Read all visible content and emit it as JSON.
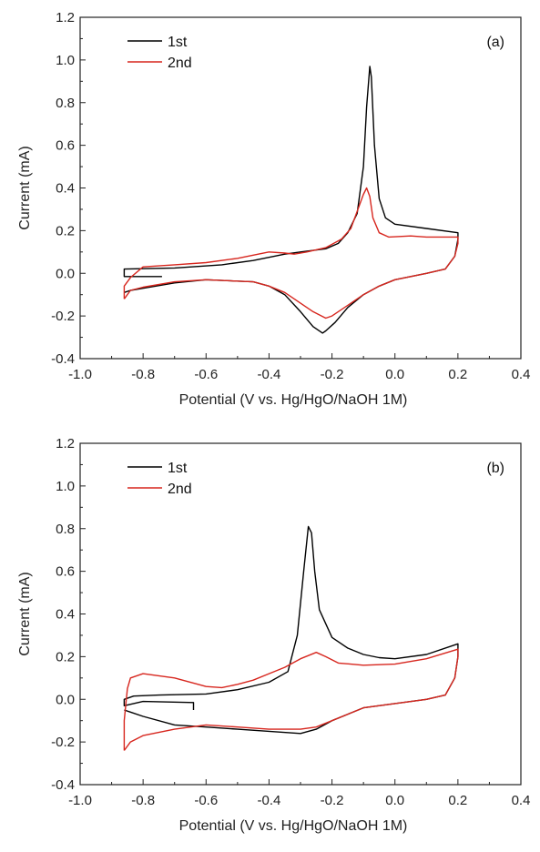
{
  "chart_data": [
    {
      "type": "line",
      "panel_label": "(a)",
      "xlabel": "Potential (V vs. Hg/HgO/NaOH 1M)",
      "ylabel": "Current (mA)",
      "xlim": [
        -1.0,
        0.4
      ],
      "ylim": [
        -0.4,
        1.2
      ],
      "xticks": [
        "-1.0",
        "-0.8",
        "-0.6",
        "-0.4",
        "-0.2",
        "0.0",
        "0.2",
        "0.4"
      ],
      "yticks": [
        "-0.4",
        "-0.2",
        "0.0",
        "0.2",
        "0.4",
        "0.6",
        "0.8",
        "1.0",
        "1.2"
      ],
      "legend_position": "top-left",
      "series": [
        {
          "name": "1st",
          "color": "#000000",
          "points": [
            [
              -0.74,
              -0.015
            ],
            [
              -0.86,
              -0.015
            ],
            [
              -0.86,
              0.02
            ],
            [
              -0.7,
              0.025
            ],
            [
              -0.55,
              0.04
            ],
            [
              -0.45,
              0.06
            ],
            [
              -0.35,
              0.09
            ],
            [
              -0.3,
              0.1
            ],
            [
              -0.22,
              0.115
            ],
            [
              -0.18,
              0.14
            ],
            [
              -0.15,
              0.19
            ],
            [
              -0.12,
              0.28
            ],
            [
              -0.1,
              0.5
            ],
            [
              -0.09,
              0.78
            ],
            [
              -0.08,
              0.97
            ],
            [
              -0.075,
              0.92
            ],
            [
              -0.065,
              0.6
            ],
            [
              -0.05,
              0.35
            ],
            [
              -0.03,
              0.26
            ],
            [
              0.0,
              0.23
            ],
            [
              0.1,
              0.21
            ],
            [
              0.2,
              0.19
            ],
            [
              0.2,
              0.16
            ],
            [
              0.19,
              0.08
            ],
            [
              0.16,
              0.02
            ],
            [
              0.1,
              0.0
            ],
            [
              0.0,
              -0.03
            ],
            [
              -0.05,
              -0.06
            ],
            [
              -0.1,
              -0.1
            ],
            [
              -0.15,
              -0.16
            ],
            [
              -0.19,
              -0.23
            ],
            [
              -0.22,
              -0.27
            ],
            [
              -0.23,
              -0.28
            ],
            [
              -0.26,
              -0.25
            ],
            [
              -0.3,
              -0.18
            ],
            [
              -0.35,
              -0.1
            ],
            [
              -0.4,
              -0.06
            ],
            [
              -0.45,
              -0.04
            ],
            [
              -0.6,
              -0.03
            ],
            [
              -0.7,
              -0.045
            ],
            [
              -0.8,
              -0.07
            ],
            [
              -0.84,
              -0.08
            ],
            [
              -0.86,
              -0.09
            ]
          ]
        },
        {
          "name": "2nd",
          "color": "#d7261e",
          "points": [
            [
              -0.86,
              -0.12
            ],
            [
              -0.86,
              -0.06
            ],
            [
              -0.84,
              -0.02
            ],
            [
              -0.8,
              0.03
            ],
            [
              -0.7,
              0.04
            ],
            [
              -0.6,
              0.05
            ],
            [
              -0.5,
              0.07
            ],
            [
              -0.45,
              0.085
            ],
            [
              -0.4,
              0.1
            ],
            [
              -0.35,
              0.095
            ],
            [
              -0.32,
              0.09
            ],
            [
              -0.28,
              0.1
            ],
            [
              -0.22,
              0.12
            ],
            [
              -0.17,
              0.16
            ],
            [
              -0.14,
              0.21
            ],
            [
              -0.12,
              0.29
            ],
            [
              -0.1,
              0.37
            ],
            [
              -0.09,
              0.4
            ],
            [
              -0.08,
              0.36
            ],
            [
              -0.07,
              0.26
            ],
            [
              -0.05,
              0.19
            ],
            [
              -0.02,
              0.17
            ],
            [
              0.05,
              0.175
            ],
            [
              0.1,
              0.17
            ],
            [
              0.2,
              0.17
            ],
            [
              0.2,
              0.14
            ],
            [
              0.19,
              0.08
            ],
            [
              0.16,
              0.02
            ],
            [
              0.1,
              0.0
            ],
            [
              0.0,
              -0.03
            ],
            [
              -0.05,
              -0.06
            ],
            [
              -0.1,
              -0.1
            ],
            [
              -0.15,
              -0.15
            ],
            [
              -0.2,
              -0.2
            ],
            [
              -0.22,
              -0.21
            ],
            [
              -0.26,
              -0.18
            ],
            [
              -0.3,
              -0.14
            ],
            [
              -0.35,
              -0.09
            ],
            [
              -0.4,
              -0.06
            ],
            [
              -0.45,
              -0.04
            ],
            [
              -0.6,
              -0.03
            ],
            [
              -0.7,
              -0.04
            ],
            [
              -0.8,
              -0.065
            ],
            [
              -0.84,
              -0.08
            ],
            [
              -0.86,
              -0.12
            ]
          ]
        }
      ]
    },
    {
      "type": "line",
      "panel_label": "(b)",
      "xlabel": "Potential (V vs. Hg/HgO/NaOH 1M)",
      "ylabel": "Current (mA)",
      "xlim": [
        -1.0,
        0.4
      ],
      "ylim": [
        -0.4,
        1.2
      ],
      "xticks": [
        "-1.0",
        "-0.8",
        "-0.6",
        "-0.4",
        "-0.2",
        "0.0",
        "0.2",
        "0.4"
      ],
      "yticks": [
        "-0.4",
        "-0.2",
        "0.0",
        "0.2",
        "0.4",
        "0.6",
        "0.8",
        "1.0",
        "1.2"
      ],
      "legend_position": "top-left",
      "series": [
        {
          "name": "1st",
          "color": "#000000",
          "points": [
            [
              -0.64,
              -0.05
            ],
            [
              -0.64,
              -0.015
            ],
            [
              -0.8,
              -0.01
            ],
            [
              -0.86,
              -0.03
            ],
            [
              -0.86,
              0.0
            ],
            [
              -0.83,
              0.015
            ],
            [
              -0.75,
              0.02
            ],
            [
              -0.6,
              0.025
            ],
            [
              -0.5,
              0.045
            ],
            [
              -0.4,
              0.08
            ],
            [
              -0.34,
              0.13
            ],
            [
              -0.31,
              0.3
            ],
            [
              -0.29,
              0.6
            ],
            [
              -0.275,
              0.81
            ],
            [
              -0.265,
              0.78
            ],
            [
              -0.255,
              0.6
            ],
            [
              -0.24,
              0.42
            ],
            [
              -0.2,
              0.29
            ],
            [
              -0.15,
              0.24
            ],
            [
              -0.1,
              0.21
            ],
            [
              -0.05,
              0.195
            ],
            [
              0.0,
              0.19
            ],
            [
              0.1,
              0.21
            ],
            [
              0.2,
              0.26
            ],
            [
              0.2,
              0.2
            ],
            [
              0.19,
              0.1
            ],
            [
              0.16,
              0.02
            ],
            [
              0.1,
              0.0
            ],
            [
              0.0,
              -0.02
            ],
            [
              -0.1,
              -0.04
            ],
            [
              -0.2,
              -0.1
            ],
            [
              -0.25,
              -0.14
            ],
            [
              -0.3,
              -0.16
            ],
            [
              -0.4,
              -0.15
            ],
            [
              -0.5,
              -0.14
            ],
            [
              -0.6,
              -0.13
            ],
            [
              -0.7,
              -0.12
            ],
            [
              -0.8,
              -0.08
            ],
            [
              -0.84,
              -0.06
            ],
            [
              -0.86,
              -0.05
            ]
          ]
        },
        {
          "name": "2nd",
          "color": "#d7261e",
          "points": [
            [
              -0.86,
              -0.24
            ],
            [
              -0.86,
              -0.1
            ],
            [
              -0.85,
              0.05
            ],
            [
              -0.84,
              0.1
            ],
            [
              -0.8,
              0.12
            ],
            [
              -0.7,
              0.1
            ],
            [
              -0.6,
              0.06
            ],
            [
              -0.55,
              0.055
            ],
            [
              -0.5,
              0.07
            ],
            [
              -0.45,
              0.09
            ],
            [
              -0.4,
              0.12
            ],
            [
              -0.35,
              0.15
            ],
            [
              -0.3,
              0.19
            ],
            [
              -0.25,
              0.22
            ],
            [
              -0.22,
              0.2
            ],
            [
              -0.18,
              0.17
            ],
            [
              -0.1,
              0.16
            ],
            [
              0.0,
              0.165
            ],
            [
              0.1,
              0.19
            ],
            [
              0.2,
              0.235
            ],
            [
              0.2,
              0.2
            ],
            [
              0.19,
              0.1
            ],
            [
              0.16,
              0.02
            ],
            [
              0.1,
              0.0
            ],
            [
              0.0,
              -0.02
            ],
            [
              -0.1,
              -0.04
            ],
            [
              -0.2,
              -0.1
            ],
            [
              -0.25,
              -0.13
            ],
            [
              -0.3,
              -0.14
            ],
            [
              -0.4,
              -0.14
            ],
            [
              -0.5,
              -0.13
            ],
            [
              -0.6,
              -0.12
            ],
            [
              -0.7,
              -0.14
            ],
            [
              -0.8,
              -0.17
            ],
            [
              -0.84,
              -0.2
            ],
            [
              -0.86,
              -0.24
            ]
          ]
        }
      ]
    }
  ]
}
